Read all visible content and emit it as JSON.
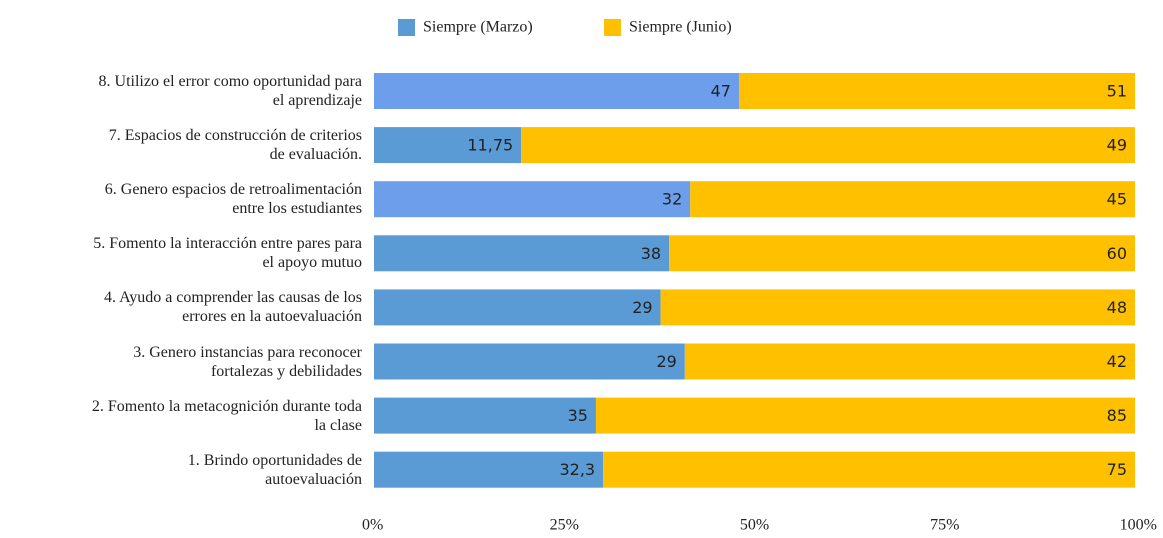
{
  "chart_data": {
    "type": "bar",
    "orientation": "horizontal",
    "stacking": "percent",
    "categories": [
      "8. Utilizo el error como oportunidad para\nel aprendizaje",
      "7. Espacios de construcción de criterios\nde evaluación.",
      "6. Genero espacios de retroalimentación\nentre los estudiantes",
      "5. Fomento la interacción entre pares para\nel apoyo mutuo",
      "4. Ayudo a comprender las causas de los\nerrores en la autoevaluación",
      "3. Genero instancias para reconocer\nfortalezas y debilidades",
      "2. Fomento la metacognición durante toda\nla clase",
      "1. Brindo oportunidades de\nautoevaluación"
    ],
    "series": [
      {
        "name": "Siempre (Marzo)",
        "color": "#5b9bd5",
        "colors": [
          "#6d9eeb",
          "#5b9bd5",
          "#6d9eeb",
          "#5b9bd5",
          "#5b9bd5",
          "#5b9bd5",
          "#5b9bd5",
          "#5b9bd5"
        ],
        "values": [
          47,
          11.75,
          32,
          38,
          29,
          29,
          35,
          32.3
        ],
        "value_labels": [
          "47",
          "11,75",
          "32",
          "38",
          "29",
          "29",
          "35",
          "32,3"
        ]
      },
      {
        "name": "Siempre (Junio)",
        "color": "#ffc000",
        "values": [
          51,
          49,
          45,
          60,
          48,
          42,
          85,
          75
        ]
      }
    ],
    "xlim": [
      0,
      100
    ],
    "xticks": [
      {
        "value": 0,
        "label": "0%"
      },
      {
        "value": 25,
        "label": "25%"
      },
      {
        "value": 50,
        "label": "50%"
      },
      {
        "value": 75,
        "label": "75%"
      },
      {
        "value": 100,
        "label": "100%"
      }
    ],
    "legend": "top"
  }
}
